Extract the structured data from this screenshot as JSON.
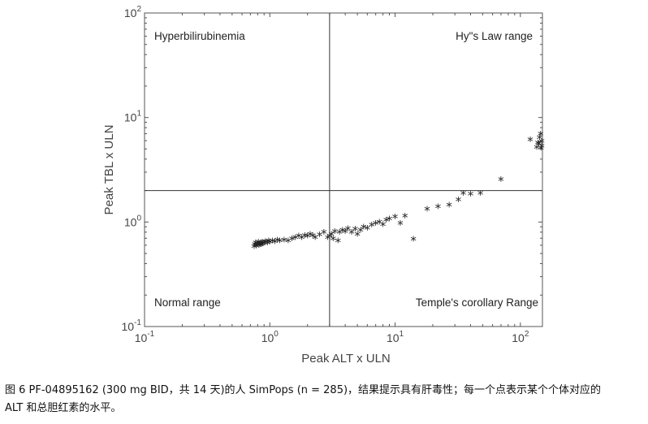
{
  "chart_data": {
    "type": "scatter",
    "xlabel": "Peak ALT x ULN",
    "ylabel": "Peak TBL x ULN",
    "x_scale": "log",
    "y_scale": "log",
    "xlim": [
      0.1,
      150
    ],
    "ylim": [
      0.1,
      100
    ],
    "x_ticks": [
      {
        "base": "10",
        "exp": "-1"
      },
      {
        "base": "10",
        "exp": "0"
      },
      {
        "base": "10",
        "exp": "1"
      },
      {
        "base": "10",
        "exp": "2"
      }
    ],
    "y_ticks": [
      {
        "base": "10",
        "exp": "-1"
      },
      {
        "base": "10",
        "exp": "0"
      },
      {
        "base": "10",
        "exp": "1"
      },
      {
        "base": "10",
        "exp": "2"
      }
    ],
    "reference_lines": {
      "x": 3,
      "y": 2
    },
    "marker": "*",
    "quadrant_labels": {
      "top_left": "Hyperbilirubinemia",
      "top_right": "Hy\"s Law range",
      "bottom_left": "Normal range",
      "bottom_right": "Temple's corollary Range"
    },
    "points": [
      [
        0.75,
        0.57
      ],
      [
        0.76,
        0.6
      ],
      [
        0.77,
        0.62
      ],
      [
        0.78,
        0.58
      ],
      [
        0.79,
        0.61
      ],
      [
        0.8,
        0.6
      ],
      [
        0.81,
        0.63
      ],
      [
        0.82,
        0.59
      ],
      [
        0.83,
        0.61
      ],
      [
        0.84,
        0.6
      ],
      [
        0.85,
        0.62
      ],
      [
        0.86,
        0.6
      ],
      [
        0.87,
        0.63
      ],
      [
        0.88,
        0.61
      ],
      [
        0.9,
        0.62
      ],
      [
        0.92,
        0.64
      ],
      [
        0.94,
        0.63
      ],
      [
        0.96,
        0.62
      ],
      [
        0.98,
        0.65
      ],
      [
        1.0,
        0.63
      ],
      [
        1.05,
        0.65
      ],
      [
        1.1,
        0.64
      ],
      [
        1.15,
        0.66
      ],
      [
        1.2,
        0.65
      ],
      [
        1.3,
        0.66
      ],
      [
        1.4,
        0.65
      ],
      [
        1.5,
        0.68
      ],
      [
        1.6,
        0.7
      ],
      [
        1.7,
        0.72
      ],
      [
        1.8,
        0.7
      ],
      [
        1.9,
        0.73
      ],
      [
        2.0,
        0.72
      ],
      [
        2.1,
        0.75
      ],
      [
        2.2,
        0.73
      ],
      [
        2.3,
        0.7
      ],
      [
        2.5,
        0.74
      ],
      [
        2.7,
        0.78
      ],
      [
        2.9,
        0.7
      ],
      [
        3.0,
        0.72
      ],
      [
        3.1,
        0.75
      ],
      [
        3.2,
        0.68
      ],
      [
        3.3,
        0.8
      ],
      [
        3.5,
        0.65
      ],
      [
        3.6,
        0.78
      ],
      [
        3.8,
        0.82
      ],
      [
        4.0,
        0.8
      ],
      [
        4.2,
        0.85
      ],
      [
        4.5,
        0.78
      ],
      [
        4.8,
        0.84
      ],
      [
        5.0,
        0.75
      ],
      [
        5.3,
        0.82
      ],
      [
        5.6,
        0.88
      ],
      [
        6.0,
        0.86
      ],
      [
        6.5,
        0.92
      ],
      [
        7.0,
        0.95
      ],
      [
        7.5,
        0.98
      ],
      [
        8.0,
        0.93
      ],
      [
        8.5,
        1.02
      ],
      [
        9.0,
        1.05
      ],
      [
        10.0,
        1.1
      ],
      [
        11.0,
        0.95
      ],
      [
        12.0,
        1.12
      ],
      [
        14.0,
        0.67
      ],
      [
        18.0,
        1.3
      ],
      [
        22.0,
        1.38
      ],
      [
        27.0,
        1.42
      ],
      [
        32.0,
        1.6
      ],
      [
        35.0,
        1.85
      ],
      [
        40.0,
        1.82
      ],
      [
        48.0,
        1.85
      ],
      [
        70.0,
        2.5
      ],
      [
        120.0,
        6.0
      ],
      [
        135.0,
        5.1
      ],
      [
        140.0,
        5.5
      ],
      [
        145.0,
        6.8
      ],
      [
        148.0,
        5.2
      ],
      [
        148.0,
        5.8
      ],
      [
        146.0,
        5.0
      ],
      [
        142.0,
        6.3
      ],
      [
        138.0,
        5.6
      ]
    ]
  },
  "caption": {
    "line1": "图 6 PF-04895162 (300 mg BID，共 14 天)的人 SimPops (n = 285)，结果提示具有肝毒性；每一个点表示某个个体对应的",
    "line2": "ALT 和总胆红素的水平。"
  }
}
